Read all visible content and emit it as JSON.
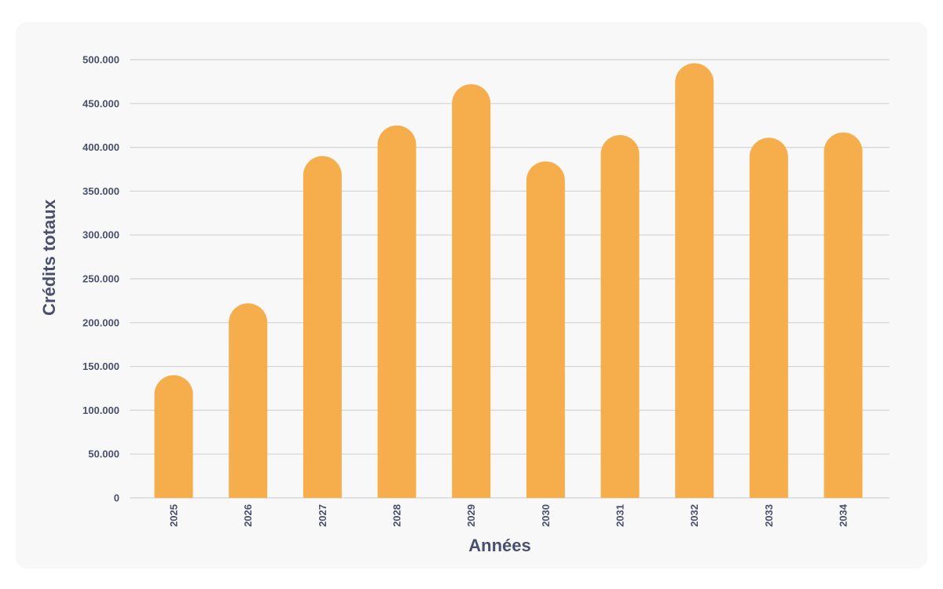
{
  "chart_data": {
    "type": "bar",
    "title": "",
    "xlabel": "Années",
    "ylabel": "Crédits totaux",
    "categories": [
      "2025",
      "2026",
      "2027",
      "2028",
      "2029",
      "2030",
      "2031",
      "2032",
      "2033",
      "2034"
    ],
    "values": [
      140000,
      222000,
      390000,
      425000,
      472000,
      384000,
      414000,
      496000,
      411000,
      417000
    ],
    "ylim": [
      0,
      500000
    ],
    "yticks": [
      0,
      50000,
      100000,
      150000,
      200000,
      250000,
      300000,
      350000,
      400000,
      450000,
      500000
    ],
    "ytick_labels": [
      "0",
      "50.000",
      "100.000",
      "150.000",
      "200.000",
      "250.000",
      "300.000",
      "350.000",
      "400.000",
      "450.000",
      "500.000"
    ],
    "grid": true,
    "legend": "none",
    "colors": {
      "bar": "#f5ae4b",
      "grid": "#d3d3d9",
      "text": "#4a4f6e",
      "background": "#f8f8f8"
    }
  }
}
